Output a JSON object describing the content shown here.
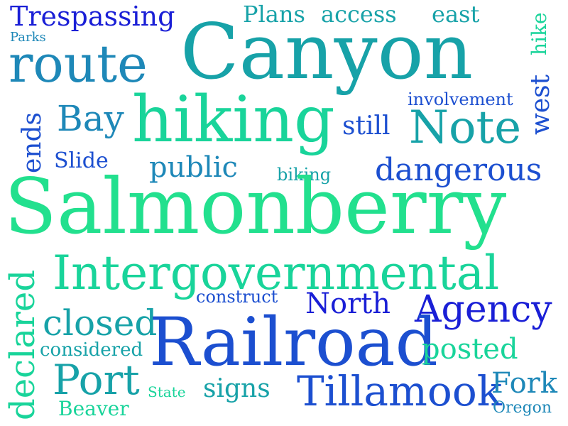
{
  "words": {
    "trespassing": "Trespassing",
    "plans": "Plans",
    "access": "access",
    "east": "east",
    "parks": "Parks",
    "route": "route",
    "canyon": "Canyon",
    "hike": "hike",
    "west": "west",
    "involvement": "involvement",
    "ends": "ends",
    "bay": "Bay",
    "hiking": "hiking",
    "still": "still",
    "note": "Note",
    "slide": "Slide",
    "public": "public",
    "biking": "biking",
    "dangerous": "dangerous",
    "salmonberry": "Salmonberry",
    "declared": "declared",
    "intergovernmental": "Intergovernmental",
    "construct": "construct",
    "north": "North",
    "closed": "closed",
    "agency": "Agency",
    "railroad": "Railroad",
    "considered": "considered",
    "posted": "posted",
    "port": "Port",
    "state": "State",
    "signs": "signs",
    "tillamook": "Tillamook",
    "fork": "Fork",
    "beaver": "Beaver",
    "oregon": "Oregon"
  },
  "colors": {
    "deep_blue": "#1a1fd6",
    "blue": "#1c4fd0",
    "steel": "#1e88b8",
    "teal": "#17a2a8",
    "green": "#19d49a",
    "mint": "#22e08e"
  }
}
